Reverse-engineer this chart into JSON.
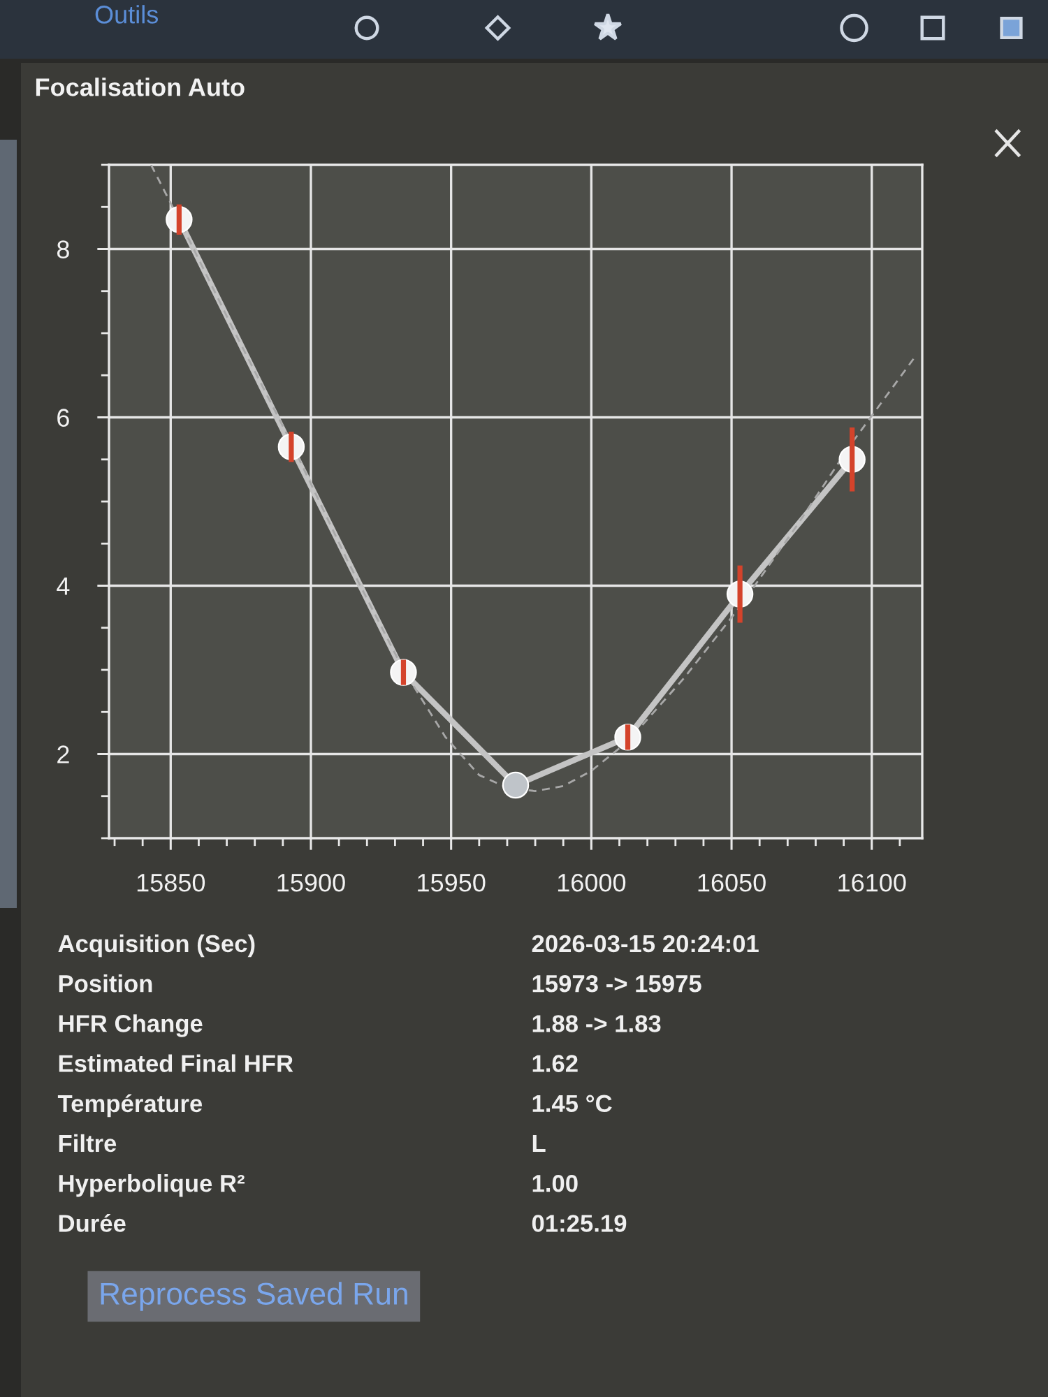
{
  "chart_data": {
    "type": "line",
    "title": "Focalisation Auto",
    "x": [
      15853,
      15893,
      15933,
      15973,
      16013,
      16053,
      16093
    ],
    "series": [
      {
        "color": "#c4c4c4",
        "marker": "circle",
        "line_style": "solid",
        "values": [
          8.35,
          5.65,
          2.97,
          1.63,
          2.2,
          3.9,
          5.5
        ],
        "errors": [
          0.18,
          0.18,
          0.15,
          null,
          0.15,
          0.34,
          0.38
        ],
        "colors": [
          "#f4f4f4",
          "#f4f4f4",
          "#f4f4f4",
          "#bfc4c9",
          "#f4f4f4",
          "#f4f4f4",
          "#f4f4f4"
        ]
      },
      {
        "color": "#a8a8a8",
        "marker": "none",
        "line_style": "dashed",
        "x": [
          15843,
          15853,
          15873,
          15893,
          15913,
          15933,
          15948,
          15960,
          15970,
          15980,
          15990,
          16000,
          16013,
          16033,
          16053,
          16073,
          16093,
          16115
        ],
        "values": [
          9.0,
          8.35,
          7.0,
          5.7,
          4.3,
          3.0,
          2.2,
          1.75,
          1.6,
          1.56,
          1.62,
          1.8,
          2.15,
          2.9,
          3.75,
          4.7,
          5.7,
          6.7
        ]
      }
    ],
    "xlim": [
      15828,
      16118
    ],
    "ylim": [
      1,
      9
    ],
    "xticks": [
      15850,
      15900,
      15950,
      16000,
      16050,
      16100
    ],
    "yticks": [
      2,
      4,
      6,
      8
    ],
    "grid": true,
    "annotations": [
      "Outils",
      "Acquisition (Sec)",
      "2026-03-15 20:24:01",
      "Position",
      "15973 -> 15975",
      "HFR Change",
      "1.88 -> 1.83",
      "Estimated Final HFR",
      "1.62",
      "Température",
      "1.45 °C",
      "Filtre",
      "L",
      "Hyperbolique R²",
      "1.00",
      "Durée",
      "01:25.19",
      "Reprocess Saved Run"
    ]
  }
}
